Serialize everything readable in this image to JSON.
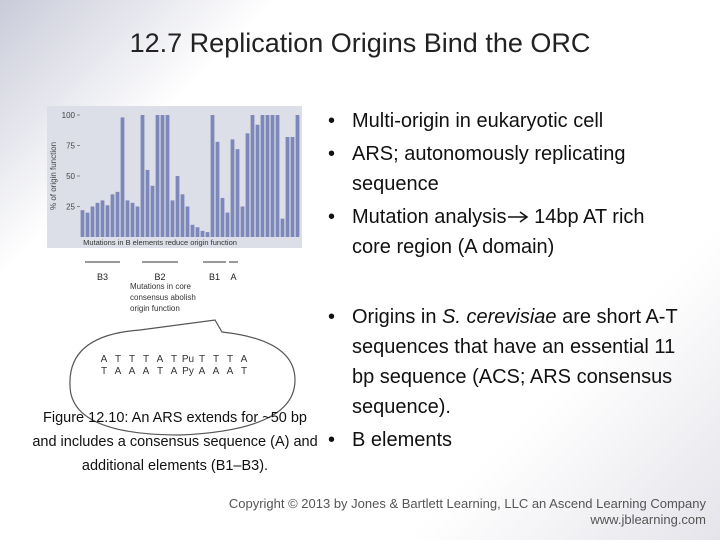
{
  "title": "12.7  Replication Origins Bind the ORC",
  "figure": {
    "chart_data": {
      "type": "bar",
      "y_label": "% of origin function",
      "x_note": "Mutations in B elements reduce origin function",
      "values": [
        22,
        20,
        25,
        28,
        30,
        26,
        35,
        37,
        98,
        30,
        28,
        25,
        100,
        55,
        42,
        100,
        100,
        100,
        30,
        50,
        35,
        25,
        10,
        8,
        5,
        4,
        100,
        78,
        32,
        20,
        80,
        72,
        25,
        85,
        100,
        92,
        100,
        100,
        100,
        100,
        15,
        82,
        82,
        100
      ],
      "color": "#7d87b9",
      "ylim": [
        0,
        100
      ],
      "yticks": [
        25,
        50,
        75,
        100
      ]
    },
    "regions": [
      "B3",
      "B2",
      "B1",
      "A"
    ],
    "annotation": [
      "Mutations in core",
      "consensus abolish",
      "origin function"
    ],
    "sequence": {
      "top": [
        "A",
        "T",
        "T",
        "T",
        "A",
        "T",
        "Pu",
        "T",
        "T",
        "T",
        "A"
      ],
      "bottom": [
        "T",
        "A",
        "A",
        "A",
        "T",
        "A",
        "Py",
        "A",
        "A",
        "A",
        "T"
      ]
    }
  },
  "caption": "Figure 12.10: An ARS extends for ~50 bp and includes a consensus sequence (A) and additional elements (B1–B3).",
  "bullets_top": [
    {
      "text": "Multi-origin in eukaryotic cell"
    },
    {
      "text": "ARS; autonomously replicating sequence"
    },
    {
      "before": "Mutation analysis",
      "after": " 14bp AT rich core region (A domain)"
    }
  ],
  "bullets_bottom": [
    {
      "before": "Origins in ",
      "italic": "S. cerevisiae",
      "after": " are short A-T sequences that have an essential 11 bp sequence (ACS; ARS consensus sequence)."
    },
    {
      "text": "B elements"
    }
  ],
  "footer": {
    "copyright": "Copyright © 2013 by Jones & Bartlett Learning, LLC an Ascend Learning Company",
    "url": "www.jblearning.com"
  }
}
